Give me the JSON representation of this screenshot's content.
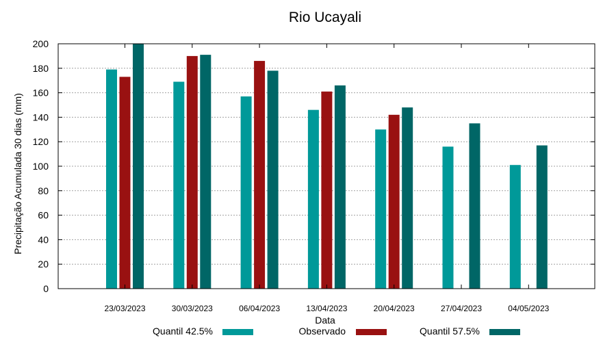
{
  "chart_data": {
    "type": "bar",
    "title": "Rio Ucayali",
    "xlabel": "Data",
    "ylabel": "Precipitação Acumulada 30 dias (mm)",
    "ylim": [
      0,
      200
    ],
    "yticks": [
      0,
      20,
      40,
      60,
      80,
      100,
      120,
      140,
      160,
      180,
      200
    ],
    "grid": true,
    "legend_position": "bottom",
    "categories": [
      "23/03/2023",
      "30/03/2023",
      "06/04/2023",
      "13/04/2023",
      "20/04/2023",
      "27/04/2023",
      "04/05/2023"
    ],
    "series": [
      {
        "name": "Quantil 42.5%",
        "color": "#009999",
        "values": [
          179,
          169,
          157,
          146,
          130,
          116,
          101
        ]
      },
      {
        "name": "Observado",
        "color": "#991111",
        "values": [
          173,
          190,
          186,
          161,
          142,
          null,
          null
        ]
      },
      {
        "name": "Quantil 57.5%",
        "color": "#006666",
        "values": [
          200,
          191,
          178,
          166,
          148,
          135,
          117
        ]
      }
    ]
  }
}
